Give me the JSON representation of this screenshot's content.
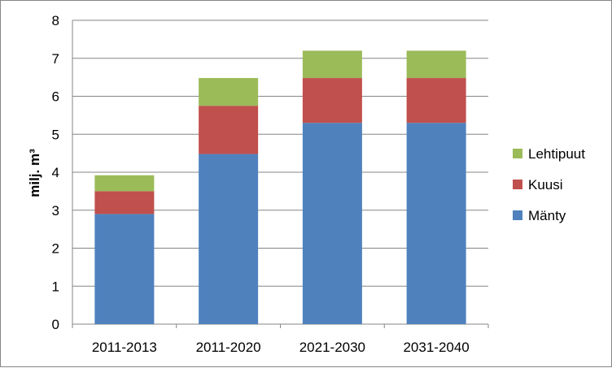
{
  "chart_data": {
    "type": "bar",
    "stacked": true,
    "title": "",
    "xlabel": "",
    "ylabel": "milj. m³",
    "ylim": [
      0,
      8
    ],
    "yticks": [
      0,
      1,
      2,
      3,
      4,
      5,
      6,
      7,
      8
    ],
    "categories": [
      "2011-2013",
      "2011-2020",
      "2021-2030",
      "2031-2040"
    ],
    "series": [
      {
        "name": "Mänty",
        "color": "#4F81BD",
        "values": [
          2.9,
          4.48,
          5.3,
          5.3
        ]
      },
      {
        "name": "Kuusi",
        "color": "#C0504D",
        "values": [
          0.6,
          1.27,
          1.18,
          1.18
        ]
      },
      {
        "name": "Lehtipuut",
        "color": "#9BBB59",
        "values": [
          0.42,
          0.73,
          0.72,
          0.72
        ]
      }
    ],
    "legend_position": "right",
    "grid": true
  }
}
